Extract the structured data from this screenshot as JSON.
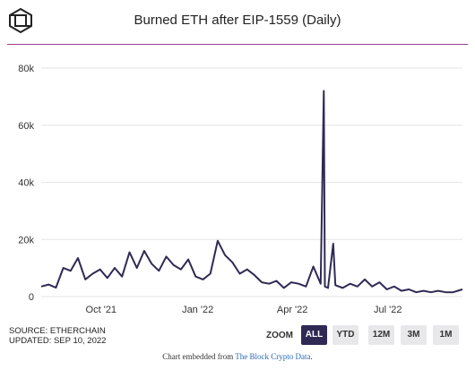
{
  "header": {
    "title": "Burned ETH after EIP-1559 (Daily)"
  },
  "footer": {
    "source": "SOURCE: ETHERCHAIN",
    "updated": "UPDATED: SEP 10, 2022",
    "embed_prefix": "Chart embedded from ",
    "embed_link": "The Block Crypto Data",
    "embed_suffix": "."
  },
  "zoom": {
    "label": "ZOOM",
    "buttons": [
      "ALL",
      "YTD",
      "12M",
      "3M",
      "1M"
    ],
    "active": "ALL"
  },
  "colors": {
    "line": "#2f2a54",
    "divider": "#9b3b93",
    "grid": "#e6e6e6"
  },
  "chart_data": {
    "type": "line",
    "title": "Burned ETH after EIP-1559 (Daily)",
    "xlabel": "",
    "ylabel": "",
    "ylim": [
      0,
      80000
    ],
    "yticks": [
      0,
      20000,
      40000,
      60000,
      80000
    ],
    "ytick_labels": [
      "0",
      "20k",
      "40k",
      "60k",
      "80k"
    ],
    "xlim": [
      "2021-08-05",
      "2022-09-10"
    ],
    "xticks": [
      "2021-10-01",
      "2022-01-01",
      "2022-04-01",
      "2022-07-01"
    ],
    "xtick_labels": [
      "Oct '21",
      "Jan '22",
      "Apr '22",
      "Jul '22"
    ],
    "grid": true,
    "legend": "none",
    "series": [
      {
        "x": [
          "2021-08-05",
          "2021-08-12",
          "2021-08-19",
          "2021-08-26",
          "2021-09-02",
          "2021-09-09",
          "2021-09-16",
          "2021-09-23",
          "2021-09-30",
          "2021-10-07",
          "2021-10-14",
          "2021-10-21",
          "2021-10-28",
          "2021-11-04",
          "2021-11-11",
          "2021-11-18",
          "2021-11-25",
          "2021-12-02",
          "2021-12-09",
          "2021-12-16",
          "2021-12-23",
          "2021-12-30",
          "2022-01-06",
          "2022-01-13",
          "2022-01-20",
          "2022-01-27",
          "2022-02-03",
          "2022-02-10",
          "2022-02-17",
          "2022-02-24",
          "2022-03-03",
          "2022-03-10",
          "2022-03-17",
          "2022-03-24",
          "2022-03-31",
          "2022-04-07",
          "2022-04-14",
          "2022-04-21",
          "2022-04-28",
          "2022-05-01",
          "2022-05-02",
          "2022-05-05",
          "2022-05-10",
          "2022-05-12",
          "2022-05-19",
          "2022-05-26",
          "2022-06-02",
          "2022-06-09",
          "2022-06-16",
          "2022-06-23",
          "2022-06-30",
          "2022-07-07",
          "2022-07-14",
          "2022-07-21",
          "2022-07-28",
          "2022-08-04",
          "2022-08-11",
          "2022-08-18",
          "2022-08-25",
          "2022-09-01",
          "2022-09-10"
        ],
        "values": [
          3500,
          4200,
          3100,
          10000,
          9000,
          13500,
          6000,
          8000,
          9500,
          6500,
          10000,
          7000,
          15500,
          10000,
          16000,
          11500,
          9000,
          14000,
          11000,
          9500,
          13000,
          7000,
          6000,
          8000,
          19500,
          14500,
          12000,
          8000,
          9500,
          7500,
          5000,
          4500,
          5500,
          3000,
          5000,
          4500,
          3500,
          10500,
          4500,
          72000,
          3500,
          3000,
          18500,
          4000,
          3000,
          4500,
          3500,
          6000,
          3500,
          5000,
          2500,
          3500,
          2000,
          2500,
          1500,
          2000,
          1500,
          2000,
          1500,
          1500,
          2500
        ]
      }
    ]
  }
}
